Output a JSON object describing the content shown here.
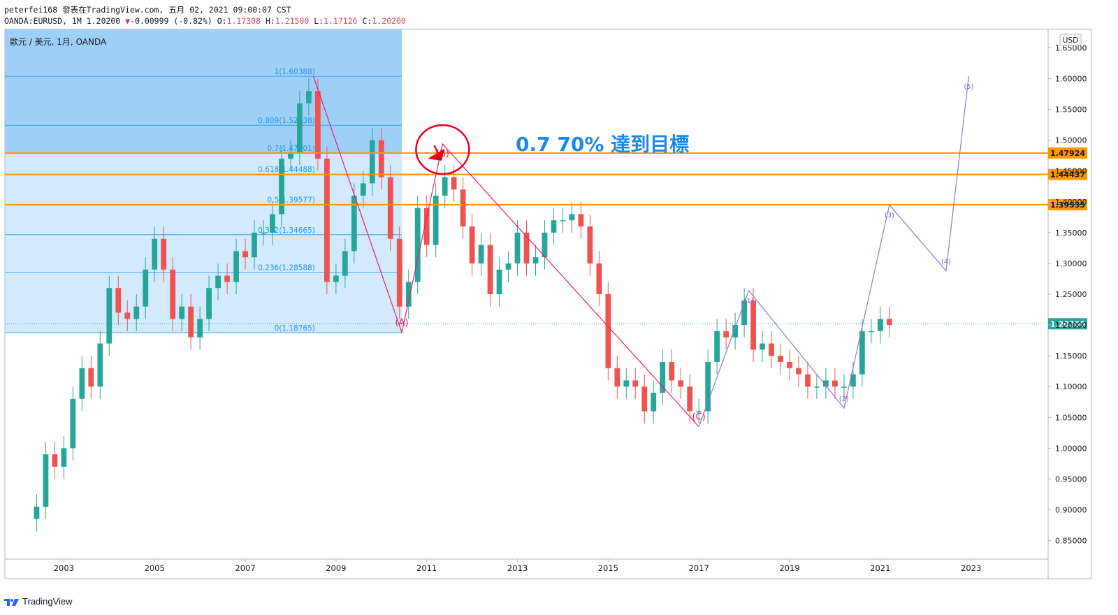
{
  "header": {
    "publish_line": "peterfei168 發表在TradingView.com, 五月 02, 2021 09:00:07 CST",
    "symbol_info": "OANDA:EURUSD, 1M 1.20200",
    "change_arrow": "▼",
    "change_text": "-0.00999 (-0.82%)",
    "o_label": "O:",
    "o_value": "1.17308",
    "h_label": "H:",
    "h_value": "1.21500",
    "l_label": "L:",
    "l_value": "1.17126",
    "c_label": "C:",
    "c_value": "1.20200"
  },
  "chart_title": "歐元 / 美元, 1月, OANDA",
  "currency_badge": "USD",
  "footer_brand": "TradingView",
  "annotation_text": "0.7 70% 達到目標",
  "colors": {
    "bull": "#26a69a",
    "bear": "#ef5350",
    "fib_fill_dark": "#4ea7f0",
    "fib_fill_light": "#bfe1fb",
    "fib_line": "#2196f3",
    "abc_line": "#e91e63",
    "wave_line": "#9575cd",
    "horizontal_line": "#ff9800",
    "price_badge": "#26a69a",
    "annotation_text": "#1e88e5",
    "circle": "#e5001a"
  },
  "chart_data": {
    "type": "candlestick",
    "title": "歐元 / 美元, 1月, OANDA",
    "xlabel": "",
    "ylabel": "",
    "ylim": [
      0.82,
      1.68
    ],
    "xlim": [
      2001.7,
      2024.7
    ],
    "x_ticks": [
      "2003",
      "2005",
      "2007",
      "2009",
      "2011",
      "2013",
      "2015",
      "2017",
      "2019",
      "2021",
      "2023"
    ],
    "y_ticks": [
      "1.65000",
      "1.60000",
      "1.55000",
      "1.50000",
      "1.45000",
      "1.40000",
      "1.35000",
      "1.30000",
      "1.25000",
      "1.20000",
      "1.15000",
      "1.10000",
      "1.05000",
      "1.00000",
      "0.95000",
      "0.90000",
      "0.85000"
    ],
    "last_price": "1.20200",
    "candles_close": [
      [
        2002.4,
        0.905
      ],
      [
        2002.6,
        0.99
      ],
      [
        2002.8,
        0.97
      ],
      [
        2003.0,
        1.0
      ],
      [
        2003.2,
        1.08
      ],
      [
        2003.4,
        1.13
      ],
      [
        2003.6,
        1.1
      ],
      [
        2003.8,
        1.17
      ],
      [
        2004.0,
        1.26
      ],
      [
        2004.2,
        1.22
      ],
      [
        2004.4,
        1.21
      ],
      [
        2004.6,
        1.23
      ],
      [
        2004.8,
        1.29
      ],
      [
        2005.0,
        1.34
      ],
      [
        2005.2,
        1.29
      ],
      [
        2005.4,
        1.21
      ],
      [
        2005.6,
        1.23
      ],
      [
        2005.8,
        1.18
      ],
      [
        2006.0,
        1.21
      ],
      [
        2006.2,
        1.26
      ],
      [
        2006.4,
        1.28
      ],
      [
        2006.6,
        1.27
      ],
      [
        2006.8,
        1.32
      ],
      [
        2007.0,
        1.31
      ],
      [
        2007.2,
        1.35
      ],
      [
        2007.4,
        1.35
      ],
      [
        2007.6,
        1.38
      ],
      [
        2007.8,
        1.47
      ],
      [
        2008.0,
        1.48
      ],
      [
        2008.2,
        1.56
      ],
      [
        2008.4,
        1.58
      ],
      [
        2008.6,
        1.47
      ],
      [
        2008.8,
        1.27
      ],
      [
        2009.0,
        1.28
      ],
      [
        2009.2,
        1.32
      ],
      [
        2009.4,
        1.41
      ],
      [
        2009.6,
        1.43
      ],
      [
        2009.8,
        1.5
      ],
      [
        2010.0,
        1.44
      ],
      [
        2010.2,
        1.34
      ],
      [
        2010.4,
        1.23
      ],
      [
        2010.6,
        1.27
      ],
      [
        2010.8,
        1.39
      ],
      [
        2011.0,
        1.33
      ],
      [
        2011.2,
        1.41
      ],
      [
        2011.4,
        1.44
      ],
      [
        2011.6,
        1.42
      ],
      [
        2011.8,
        1.36
      ],
      [
        2012.0,
        1.3
      ],
      [
        2012.2,
        1.33
      ],
      [
        2012.4,
        1.25
      ],
      [
        2012.6,
        1.29
      ],
      [
        2012.8,
        1.3
      ],
      [
        2013.0,
        1.35
      ],
      [
        2013.2,
        1.3
      ],
      [
        2013.4,
        1.31
      ],
      [
        2013.6,
        1.35
      ],
      [
        2013.8,
        1.37
      ],
      [
        2014.0,
        1.37
      ],
      [
        2014.2,
        1.38
      ],
      [
        2014.4,
        1.36
      ],
      [
        2014.6,
        1.3
      ],
      [
        2014.8,
        1.25
      ],
      [
        2015.0,
        1.13
      ],
      [
        2015.2,
        1.1
      ],
      [
        2015.4,
        1.11
      ],
      [
        2015.6,
        1.1
      ],
      [
        2015.8,
        1.06
      ],
      [
        2016.0,
        1.09
      ],
      [
        2016.2,
        1.14
      ],
      [
        2016.4,
        1.11
      ],
      [
        2016.6,
        1.1
      ],
      [
        2016.8,
        1.06
      ],
      [
        2017.0,
        1.06
      ],
      [
        2017.2,
        1.14
      ],
      [
        2017.4,
        1.19
      ],
      [
        2017.6,
        1.18
      ],
      [
        2017.8,
        1.2
      ],
      [
        2018.0,
        1.24
      ],
      [
        2018.2,
        1.16
      ],
      [
        2018.4,
        1.17
      ],
      [
        2018.6,
        1.15
      ],
      [
        2018.8,
        1.14
      ],
      [
        2019.0,
        1.13
      ],
      [
        2019.2,
        1.12
      ],
      [
        2019.4,
        1.1
      ],
      [
        2019.6,
        1.1
      ],
      [
        2019.8,
        1.11
      ],
      [
        2020.0,
        1.1
      ],
      [
        2020.2,
        1.1
      ],
      [
        2020.4,
        1.12
      ],
      [
        2020.6,
        1.19
      ],
      [
        2020.8,
        1.19
      ],
      [
        2021.0,
        1.21
      ],
      [
        2021.2,
        1.2
      ]
    ],
    "fibonacci": {
      "x_range": [
        2001.7,
        2010.45
      ],
      "levels": [
        {
          "label": "1(1.60388)",
          "value": 1.60388
        },
        {
          "label": "0.809(1.52438)",
          "value": 1.52438
        },
        {
          "label": "0.7(1.47901)",
          "value": 1.47901
        },
        {
          "label": "0.618(1.44488)",
          "value": 1.44488
        },
        {
          "label": "0.5(1.39577)",
          "value": 1.39577
        },
        {
          "label": "0.382(1.34665)",
          "value": 1.34665
        },
        {
          "label": "0.236(1.28588)",
          "value": 1.28588
        },
        {
          "label": "0(1.18765)",
          "value": 1.18765
        }
      ]
    },
    "horizontal_lines": [
      {
        "label": "1.47924",
        "value": 1.47924
      },
      {
        "label": "1.44437",
        "value": 1.44437
      },
      {
        "label": "1.39535",
        "value": 1.39535
      }
    ],
    "abc_path": [
      {
        "x": 2008.5,
        "y": 1.604,
        "label": ""
      },
      {
        "x": 2010.45,
        "y": 1.188,
        "label": "(A)"
      },
      {
        "x": 2011.35,
        "y": 1.494,
        "label": "(B)"
      },
      {
        "x": 2017.0,
        "y": 1.035,
        "label": "(C)"
      }
    ],
    "wave_path": [
      {
        "x": 2017.0,
        "y": 1.035,
        "label": ""
      },
      {
        "x": 2018.1,
        "y": 1.256,
        "label": "(1)"
      },
      {
        "x": 2020.2,
        "y": 1.065,
        "label": "(2)"
      },
      {
        "x": 2021.2,
        "y": 1.395,
        "label": "(3)"
      },
      {
        "x": 2022.45,
        "y": 1.288,
        "label": "(4)"
      },
      {
        "x": 2022.95,
        "y": 1.604,
        "label": "(5)"
      }
    ]
  }
}
